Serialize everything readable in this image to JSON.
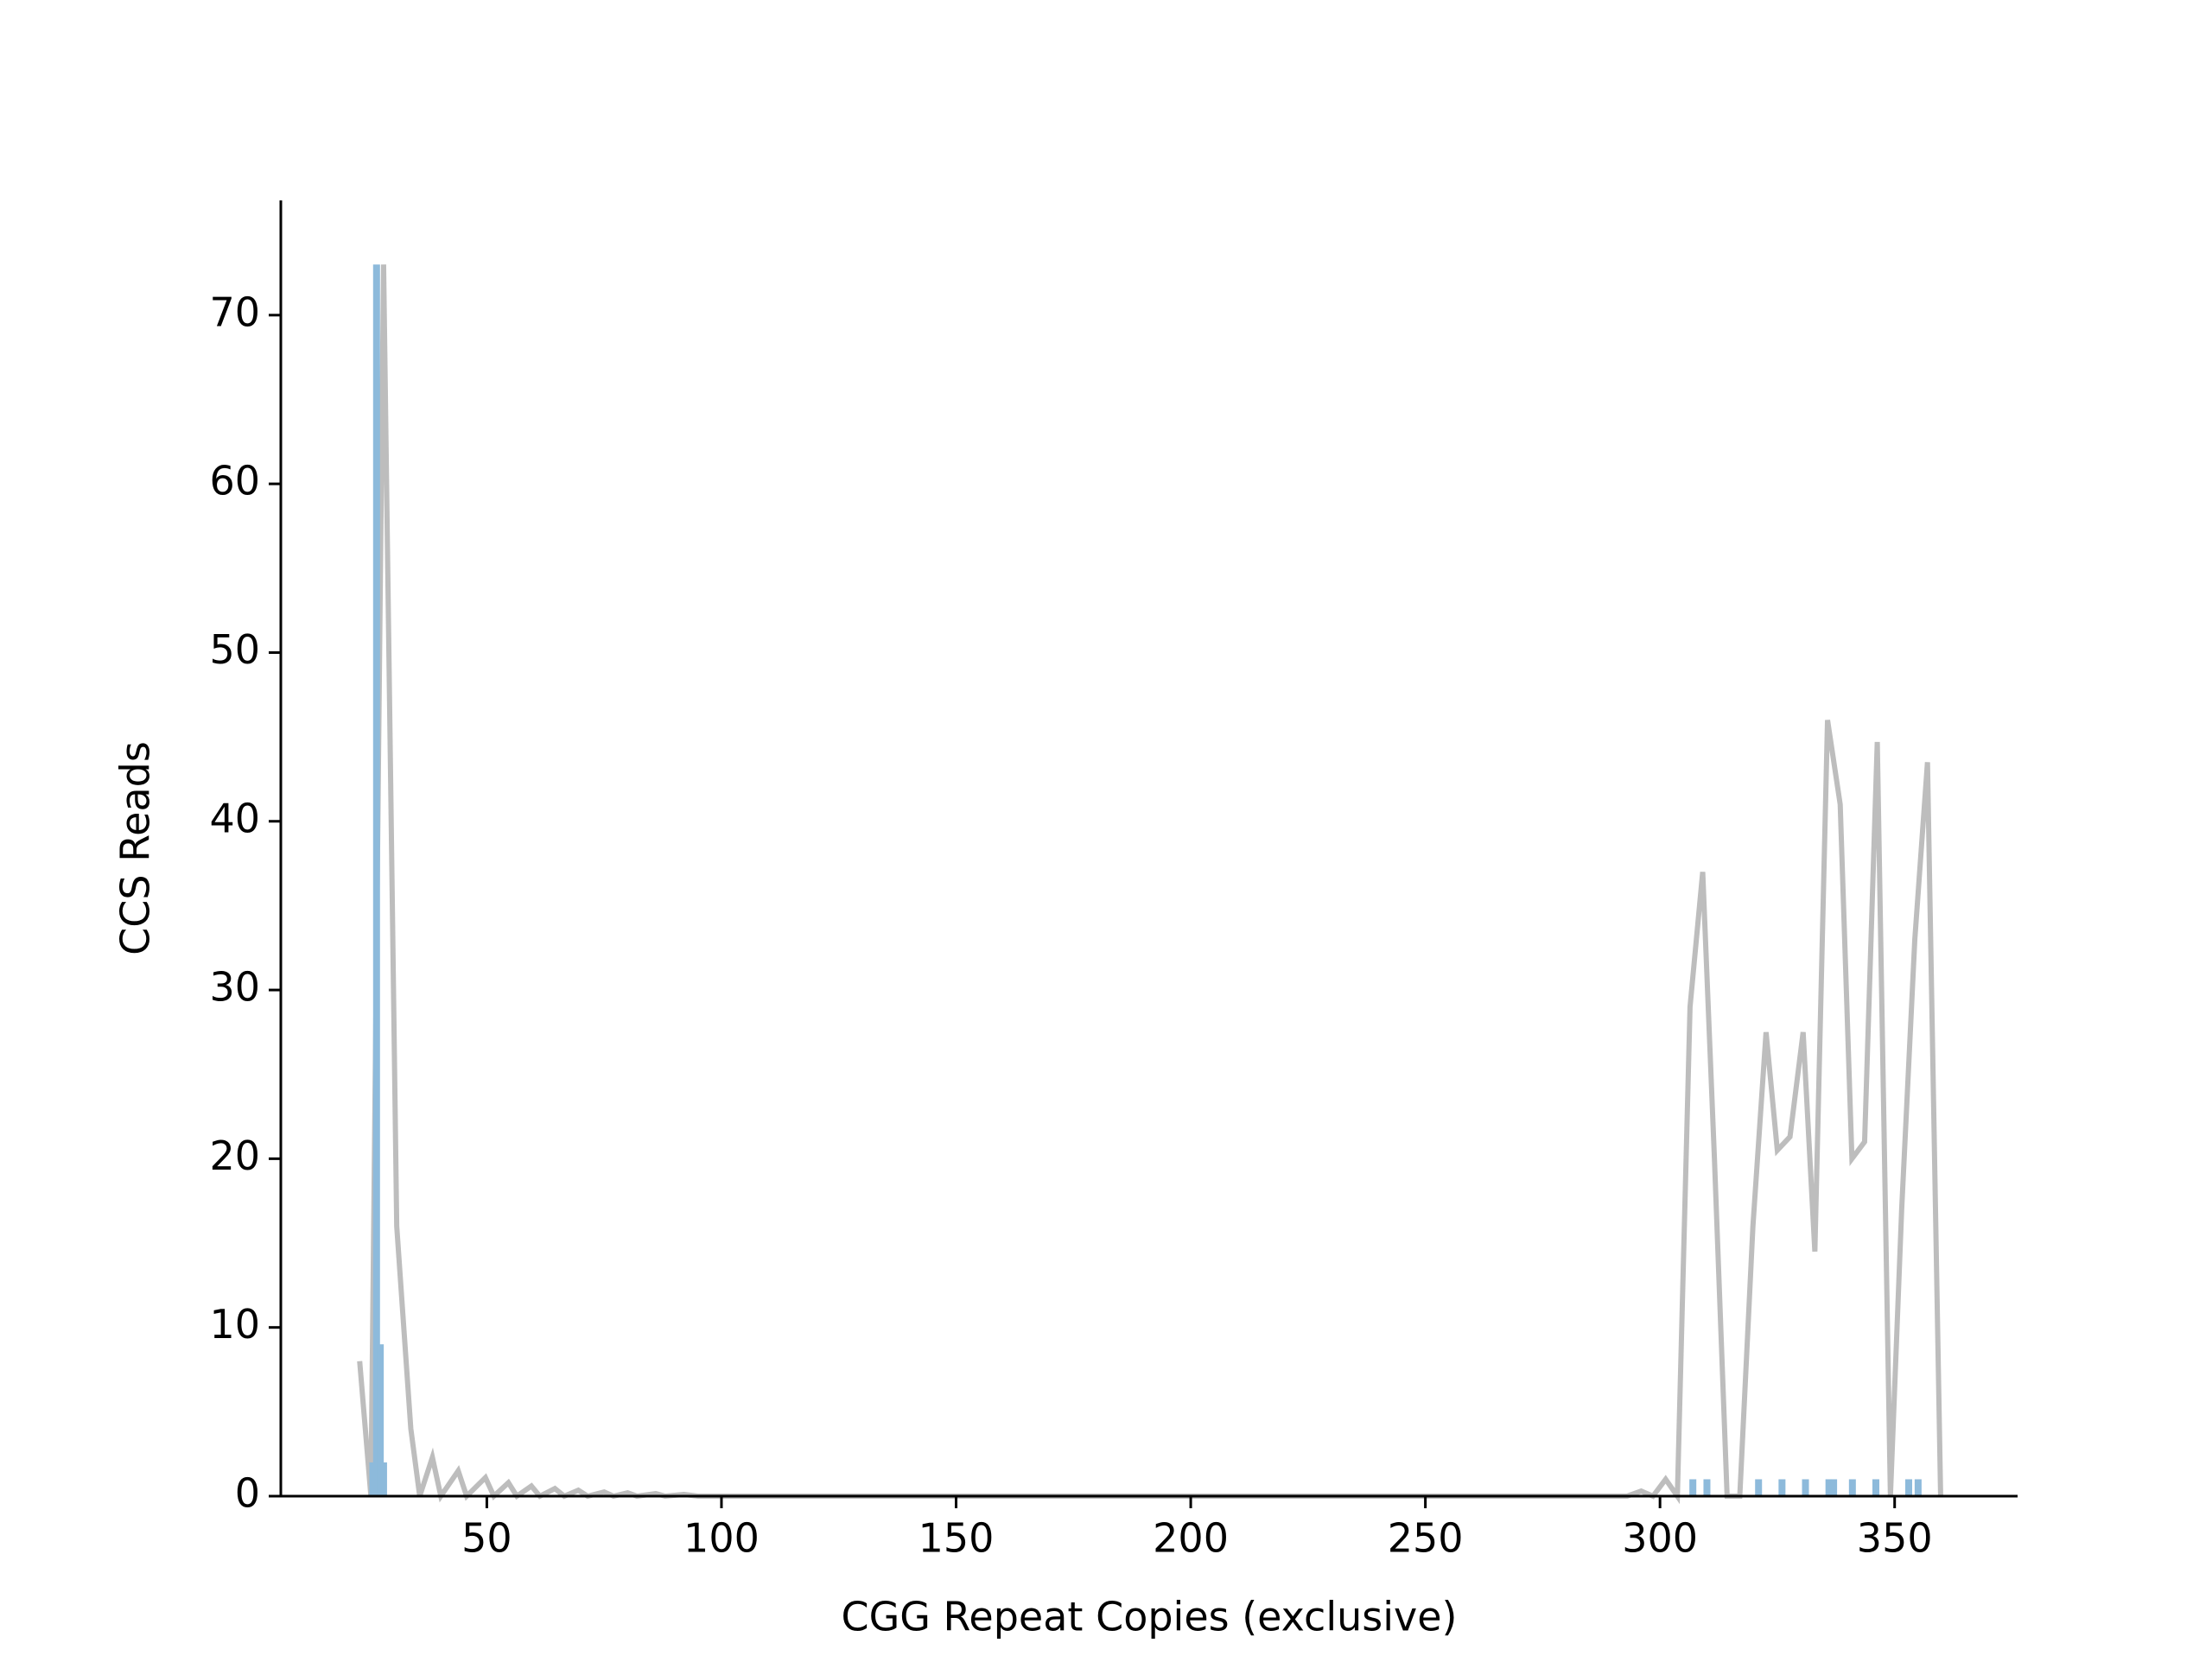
{
  "chart_data": {
    "type": "line",
    "x_label": "CGG Repeat Copies (exclusive)",
    "y_label": "CCS Reads",
    "xlim": [
      6.1,
      376.2
    ],
    "ylim": [
      0,
      76.8
    ],
    "xticks": [
      50,
      100,
      150,
      200,
      250,
      300,
      350
    ],
    "yticks": [
      0,
      10,
      20,
      30,
      40,
      50,
      60,
      70
    ],
    "series": [
      {
        "type": "line",
        "color": "#bdbdbd",
        "x": [
          22.9,
          25.3,
          28,
          30.8,
          33.8,
          35.7,
          38.4,
          40.2,
          43.9,
          45.7,
          49.7,
          51.5,
          54.6,
          56.4,
          59.5,
          61.3,
          64.5,
          66.5,
          69.5,
          71.5,
          75,
          77,
          80,
          82,
          86,
          88,
          92,
          95,
          293,
          296,
          298.5,
          301.2,
          303.7,
          306.4,
          309.1,
          311.6,
          314.3,
          317,
          319.8,
          322.6,
          325,
          327.7,
          330.5,
          333,
          335.7,
          338.4,
          340.9,
          343.6,
          346.3,
          349.1,
          351.5,
          354.3,
          357,
          359.8
        ],
        "values": [
          8,
          0,
          73,
          16,
          4,
          0,
          2.3,
          0,
          1.5,
          0,
          1.1,
          0,
          0.8,
          0,
          0.6,
          0,
          0.45,
          0,
          0.35,
          0,
          0.25,
          0,
          0.2,
          0,
          0.15,
          0,
          0.1,
          0,
          0,
          0.3,
          0,
          1,
          0,
          29,
          37,
          20,
          0,
          0,
          16,
          27.5,
          20.5,
          21.3,
          27.5,
          14.5,
          46,
          41,
          20,
          21,
          44.7,
          0,
          17,
          33,
          43.5,
          0
        ]
      },
      {
        "type": "bar",
        "color": "#8dbadb",
        "x": [
          25.7,
          26.5,
          27.3,
          28,
          307,
          310,
          321,
          326,
          331,
          336,
          337,
          341,
          346,
          353,
          355
        ],
        "values": [
          2,
          73,
          9,
          2,
          1,
          1,
          1,
          1,
          1,
          1,
          1,
          1,
          1,
          1,
          1
        ]
      }
    ]
  }
}
